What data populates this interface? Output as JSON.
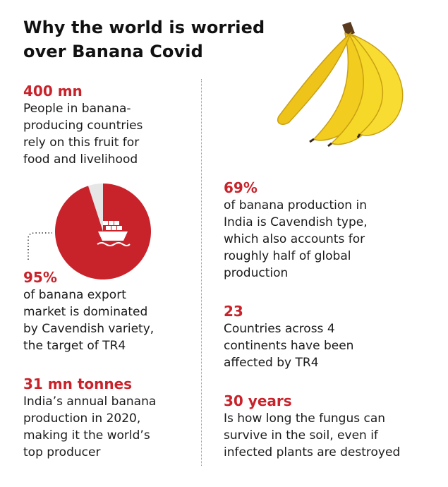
{
  "title": {
    "line1": "Why the world is worried",
    "line2": "over Banana Covid"
  },
  "colors": {
    "accent": "#c8232b",
    "pie_rest": "#e6e6e6",
    "banana": "#f5d321"
  },
  "left": {
    "s1": {
      "number": "400 mn",
      "lines": [
        "People in banana-",
        "producing countries",
        "rely on this fruit for",
        "food and livelihood"
      ]
    },
    "s2": {
      "number": "95%",
      "lines": [
        "of banana export",
        "market is dominated",
        "by Cavendish variety,",
        "the target of TR4"
      ],
      "share_percent": 95,
      "icon": "cargo-ship-icon"
    },
    "s3": {
      "number": "31 mn tonnes",
      "lines": [
        "India’s annual banana",
        "production in 2020,",
        "making it the world’s",
        "top producer"
      ]
    }
  },
  "right": {
    "image": "banana-bunch-icon",
    "s1": {
      "number": "69%",
      "lines": [
        "of banana production in",
        "India is Cavendish type,",
        "which also accounts for",
        "roughly half of global",
        "production"
      ]
    },
    "s2": {
      "number": "23",
      "lines": [
        "Countries across 4",
        "continents have been",
        "affected by TR4"
      ]
    },
    "s3": {
      "number": "30 years",
      "lines": [
        "Is how long the fungus can",
        "survive in the soil, even if",
        "infected plants are destroyed"
      ]
    }
  }
}
